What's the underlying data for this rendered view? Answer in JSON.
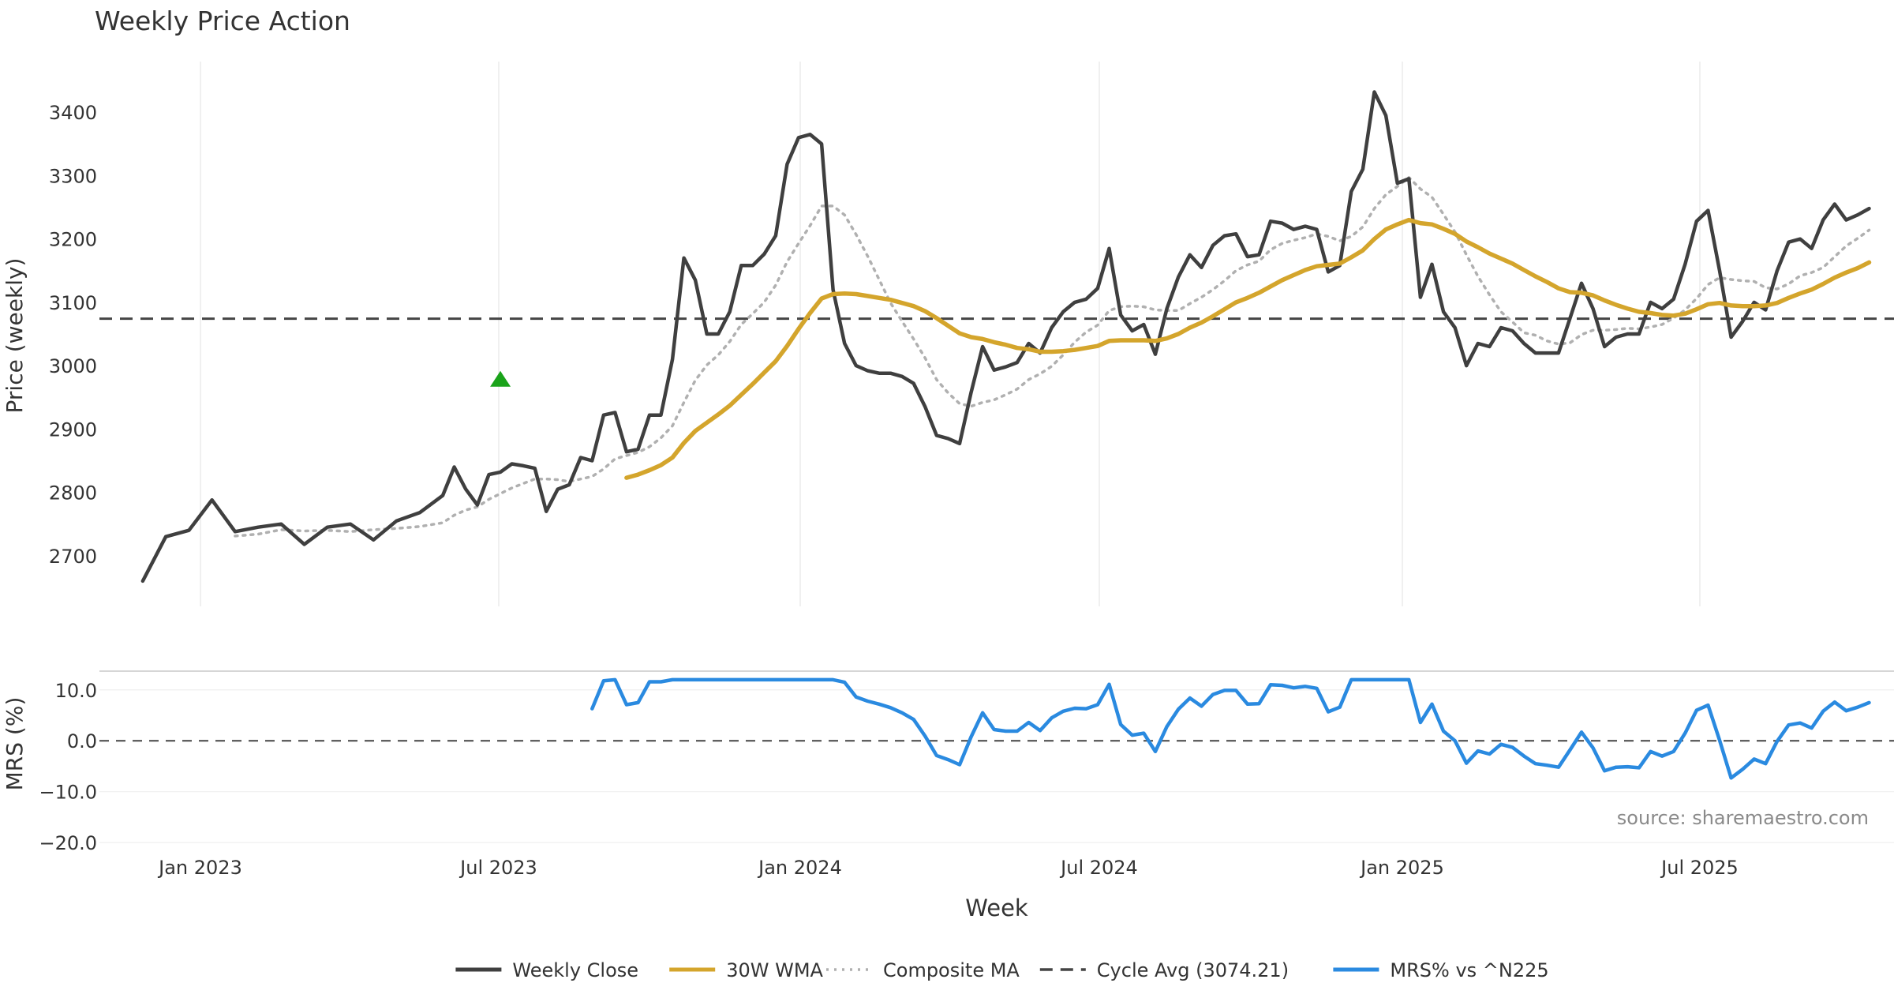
{
  "chart_data": {
    "type": "line",
    "title": "Weekly Price Action",
    "xlabel": "Week",
    "x_tick_labels": [
      "Jan 2023",
      "Jul 2023",
      "Jan 2024",
      "Jul 2024",
      "Jan 2025",
      "Jul 2025"
    ],
    "x_tick_dates": [
      "2023-01-01",
      "2023-07-01",
      "2024-01-01",
      "2024-07-01",
      "2025-01-01",
      "2025-07-01"
    ],
    "x_range": [
      "2022-11-27",
      "2025-10-19"
    ],
    "grid": true,
    "legend_position": "bottom-center",
    "source_text": "source: sharemaestro.com",
    "price_panel": {
      "ylabel": "Price (weekly)",
      "ylim": [
        2620,
        3480
      ],
      "yticks": [
        2700,
        2800,
        2900,
        3000,
        3100,
        3200,
        3300,
        3400
      ],
      "cycle_avg": 3074.21,
      "buy_signal": {
        "date": "2023-07-02",
        "value": 2978,
        "color": "#1aa31a"
      },
      "series": [
        {
          "name": "Weekly Close",
          "color": "#3f3f3f",
          "style": "solid",
          "points": [
            [
              "2022-11-27",
              2660
            ],
            [
              "2022-12-11",
              2730
            ],
            [
              "2022-12-25",
              2740
            ],
            [
              "2023-01-08",
              2788
            ],
            [
              "2023-01-22",
              2738
            ],
            [
              "2023-02-05",
              2745
            ],
            [
              "2023-02-19",
              2750
            ],
            [
              "2023-03-05",
              2718
            ],
            [
              "2023-03-19",
              2745
            ],
            [
              "2023-04-02",
              2750
            ],
            [
              "2023-04-16",
              2725
            ],
            [
              "2023-04-30",
              2755
            ],
            [
              "2023-05-14",
              2768
            ],
            [
              "2023-05-28",
              2795
            ],
            [
              "2023-06-04",
              2840
            ],
            [
              "2023-06-11",
              2805
            ],
            [
              "2023-06-18",
              2780
            ],
            [
              "2023-06-25",
              2828
            ],
            [
              "2023-07-02",
              2832
            ],
            [
              "2023-07-09",
              2845
            ],
            [
              "2023-07-16",
              2842
            ],
            [
              "2023-07-23",
              2838
            ],
            [
              "2023-07-30",
              2770
            ],
            [
              "2023-08-06",
              2805
            ],
            [
              "2023-08-13",
              2812
            ],
            [
              "2023-08-20",
              2855
            ],
            [
              "2023-08-27",
              2850
            ],
            [
              "2023-09-03",
              2922
            ],
            [
              "2023-09-10",
              2926
            ],
            [
              "2023-09-17",
              2864
            ],
            [
              "2023-09-24",
              2868
            ],
            [
              "2023-10-01",
              2922
            ],
            [
              "2023-10-08",
              2922
            ],
            [
              "2023-10-15",
              3010
            ],
            [
              "2023-10-22",
              3170
            ],
            [
              "2023-10-29",
              3135
            ],
            [
              "2023-11-05",
              3050
            ],
            [
              "2023-11-12",
              3050
            ],
            [
              "2023-11-19",
              3085
            ],
            [
              "2023-11-26",
              3158
            ],
            [
              "2023-12-03",
              3158
            ],
            [
              "2023-12-10",
              3176
            ],
            [
              "2023-12-17",
              3205
            ],
            [
              "2023-12-24",
              3318
            ],
            [
              "2023-12-31",
              3360
            ],
            [
              "2024-01-07",
              3365
            ],
            [
              "2024-01-14",
              3350
            ]
          ]
        },
        {
          "name": "30W WMA",
          "color": "#d4a52c",
          "style": "solid",
          "points": []
        },
        {
          "name": "Composite MA",
          "color": "#b0b0b0",
          "style": "dotted",
          "points": []
        }
      ]
    },
    "mrs_panel": {
      "ylabel": "MRS (%)",
      "ylim": [
        -22,
        14
      ],
      "yticks": [
        10.0,
        0.0,
        -10.0,
        -20.0
      ],
      "ytick_labels": [
        "10.0",
        "0.0",
        "−10.0",
        "−20.0"
      ],
      "series": {
        "name": "MRS% vs ^N225",
        "color": "#2a8ae0",
        "points": []
      }
    },
    "legend": [
      {
        "label": "Weekly Close",
        "color": "#3f3f3f",
        "style": "solid"
      },
      {
        "label": "30W WMA",
        "color": "#d4a52c",
        "style": "solid"
      },
      {
        "label": "Composite MA",
        "color": "#b0b0b0",
        "style": "dotted"
      },
      {
        "label": "Cycle Avg (3074.21)",
        "color": "#444444",
        "style": "dashed"
      },
      {
        "label": "MRS% vs ^N225",
        "color": "#2a8ae0",
        "style": "solid"
      }
    ]
  }
}
